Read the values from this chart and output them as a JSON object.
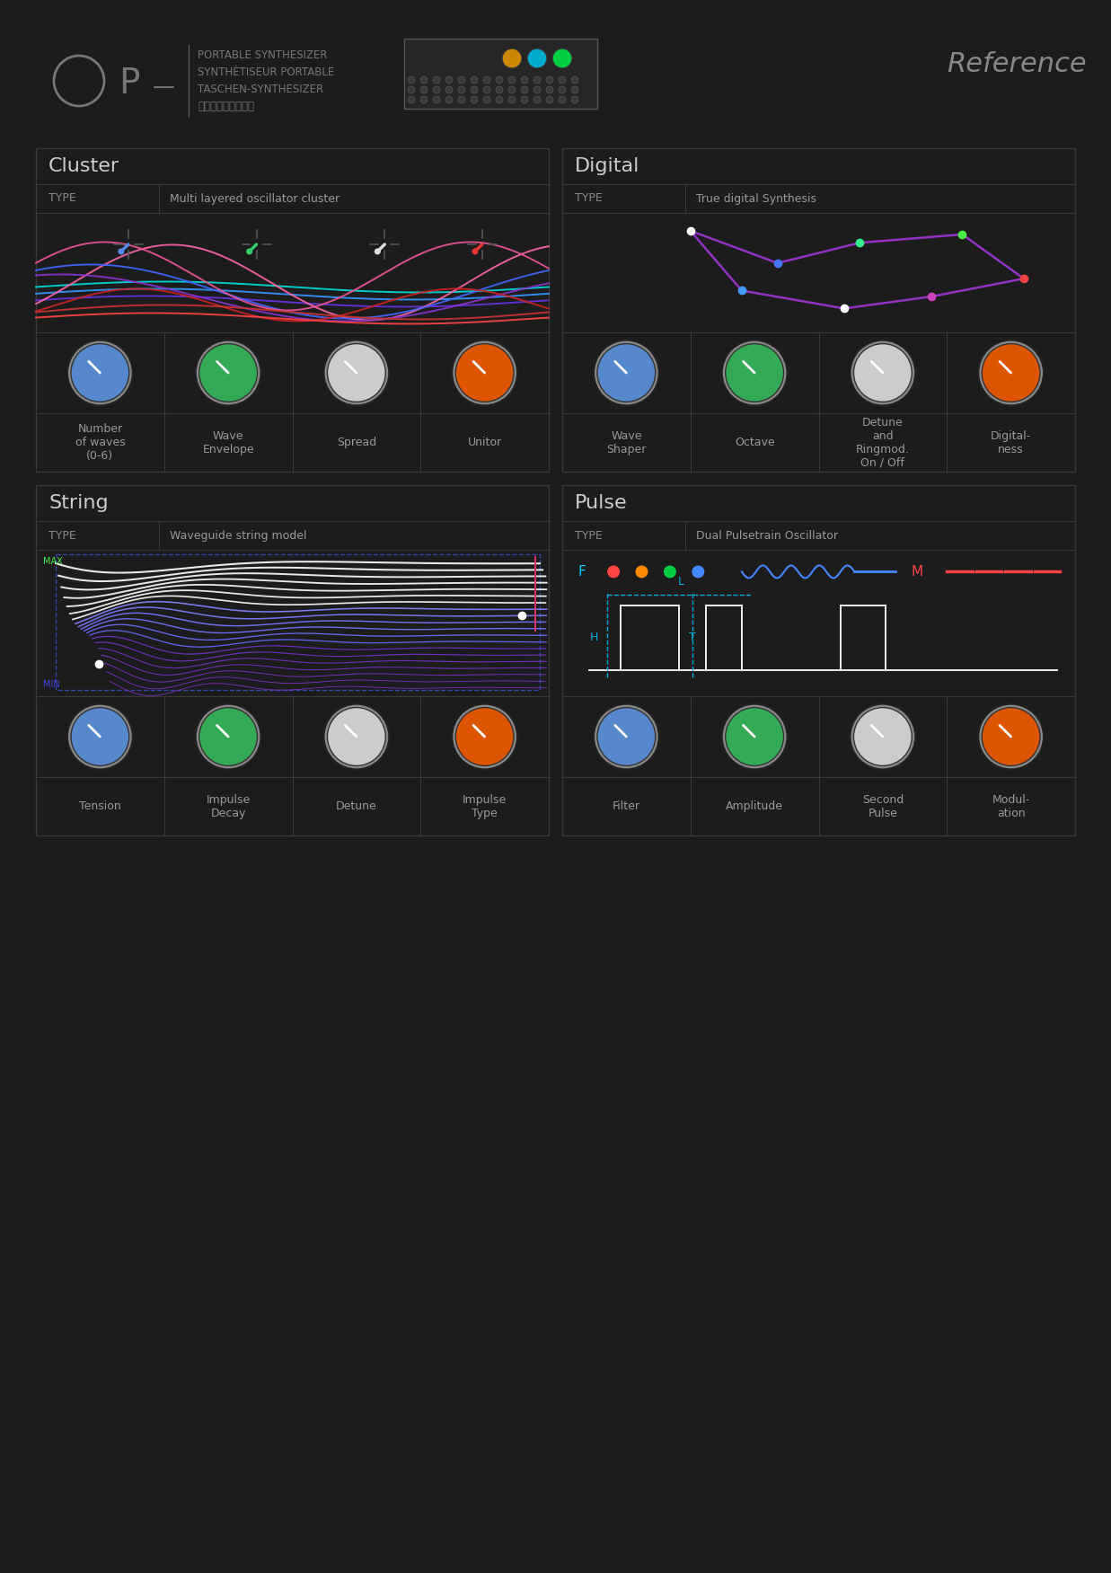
{
  "bg_color": "#1c1c1c",
  "panel_bg": "#1c1c1c",
  "panel_border": "#3a3a3a",
  "text_color": "#999999",
  "title_color": "#cccccc",
  "type_label_color": "#888888",
  "knob_bg": "#a0a0a0",
  "knob_cell_bg": "#333333",
  "label_cell_bg": "#1a1a1a",
  "cluster_type": "Multi layered oscillator cluster",
  "string_type": "Waveguide string model",
  "digital_type": "True digital Synthesis",
  "pulse_type": "Dual Pulsetrain Oscillator",
  "cluster_knob_labels": [
    "Number\nof waves\n(0-6)",
    "Wave\nEnvelope",
    "Spread",
    "Unitor"
  ],
  "string_knob_labels": [
    "Tension",
    "Impulse\nDecay",
    "Detune",
    "Impulse\nType"
  ],
  "digital_knob_labels": [
    "Wave\nShaper",
    "Octave",
    "Detune\nand\nRingmod.\nOn / Off",
    "Digital-\nness"
  ],
  "pulse_knob_labels": [
    "Filter",
    "Amplitude",
    "Second\nPulse",
    "Modul-\nation"
  ],
  "knob_colors": [
    "#5588cc",
    "#33aa55",
    "#cccccc",
    "#dd5500"
  ],
  "reference_text": "Reference",
  "op1_text_lines": [
    "PORTABLE SYNTHESIZER",
    "SYNTHÉTISEUR PORTABLE",
    "TASCHEN-SYNTHESIZER",
    "小型シンセサイザー"
  ]
}
